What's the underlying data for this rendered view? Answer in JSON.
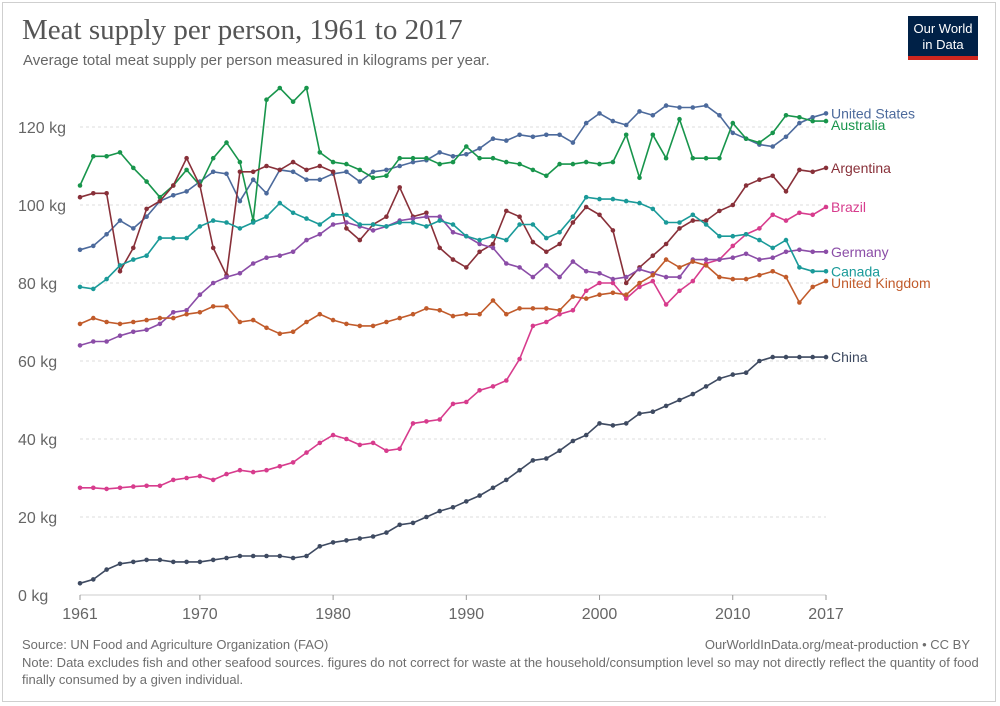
{
  "header": {
    "title": "Meat supply per person, 1961 to 2017",
    "subtitle": "Average total meat supply per person measured in kilograms per year."
  },
  "logo": {
    "line1": "Our World",
    "line2": "in Data",
    "bg": "#002147",
    "accent": "#ce261e"
  },
  "footer": {
    "source": "Source: UN Food and Agriculture Organization (FAO)",
    "credit": "OurWorldInData.org/meat-production • CC BY",
    "note": "Note: Data excludes fish and other seafood sources. figures do not correct for waste at the household/consumption level so may not directly reflect the quantity of food finally consumed by a given individual."
  },
  "chart_data": {
    "type": "line",
    "ylim": [
      0,
      130
    ],
    "xlim": [
      1961,
      2017
    ],
    "yticks": [
      0,
      20,
      40,
      60,
      80,
      100,
      120
    ],
    "ytick_labels": [
      "0 kg",
      "20 kg",
      "40 kg",
      "60 kg",
      "80 kg",
      "100 kg",
      "120 kg"
    ],
    "xticks": [
      1961,
      1970,
      1980,
      1990,
      2000,
      2010,
      2017
    ],
    "grid": "horizontal dashed",
    "legend": "inline labels at line ends",
    "series": [
      {
        "name": "United States",
        "color": "#4c6a9c",
        "x0": 1961,
        "label_y": 123.5,
        "values": [
          88.5,
          89.5,
          92.5,
          96,
          94,
          97,
          101,
          102.5,
          103.5,
          106,
          108.5,
          108,
          101,
          106.5,
          103,
          109,
          108.5,
          106.5,
          106.5,
          108,
          108.5,
          106,
          108.5,
          109,
          110,
          111,
          111.5,
          113.5,
          112.5,
          113,
          114.5,
          117,
          116.5,
          118,
          117.5,
          118,
          118,
          116,
          121,
          123.5,
          121.5,
          120.5,
          124,
          123,
          125.5,
          125,
          125,
          125.5,
          123,
          118.5,
          117,
          115.5,
          115,
          117.5,
          121,
          122.5,
          123.5
        ]
      },
      {
        "name": "Australia",
        "color": "#18954c",
        "x0": 1961,
        "label_y": 120.5,
        "values": [
          105,
          112.5,
          112.5,
          113.5,
          109.5,
          106,
          102,
          105,
          109,
          105,
          112,
          116,
          111,
          96,
          127,
          130,
          126.5,
          130,
          113.5,
          111,
          110.5,
          109,
          107,
          107.5,
          112,
          112,
          112,
          110.5,
          111,
          115,
          112,
          112,
          111,
          110.5,
          109,
          107.5,
          110.5,
          110.5,
          111,
          110.5,
          111,
          118,
          107,
          118,
          112,
          122,
          112,
          112,
          112,
          121,
          117,
          116,
          118.5,
          123,
          122.5,
          121.5,
          121.5
        ]
      },
      {
        "name": "Argentina",
        "color": "#883039",
        "x0": 1961,
        "label_y": 109.5,
        "values": [
          102,
          103,
          103,
          83,
          89,
          99,
          101,
          105,
          112,
          105,
          89,
          82,
          108.5,
          108.5,
          110,
          109,
          111,
          109,
          110,
          108.5,
          94,
          91,
          95,
          97,
          104.5,
          97,
          98,
          89,
          86,
          84,
          88,
          90,
          98.5,
          97,
          90.5,
          88,
          90,
          95.5,
          99.5,
          97.5,
          93.5,
          80,
          84,
          87,
          90,
          94,
          96,
          96,
          98.5,
          100,
          105,
          106.5,
          107.5,
          103.5,
          109,
          108.5,
          109.5
        ]
      },
      {
        "name": "Brazil",
        "color": "#d73c8d",
        "x0": 1961,
        "label_y": 99.5,
        "values": [
          27.5,
          27.5,
          27.2,
          27.5,
          27.8,
          28,
          28,
          29.5,
          30,
          30.5,
          29.5,
          31,
          32,
          31.5,
          32,
          33,
          34,
          36.5,
          39,
          41,
          40,
          38.5,
          39,
          37,
          37.5,
          44,
          44.5,
          45,
          49,
          49.5,
          52.5,
          53.5,
          55,
          60.5,
          69,
          70,
          72,
          73,
          78,
          80,
          80,
          76,
          79,
          80.5,
          74.5,
          78,
          80.5,
          85,
          86,
          89.5,
          92.5,
          94,
          97.5,
          96,
          98,
          97.5,
          99.5
        ]
      },
      {
        "name": "Germany",
        "color": "#8b4da7",
        "x0": 1961,
        "label_y": 88,
        "values": [
          64,
          65,
          65,
          66.5,
          67.5,
          68,
          69.5,
          72.5,
          73,
          77,
          80,
          81.5,
          82.5,
          85,
          86.5,
          87,
          88,
          91,
          92.5,
          95,
          95.5,
          94.5,
          93.5,
          94.5,
          96,
          96.5,
          97,
          97,
          93,
          92,
          90,
          89,
          85,
          84,
          81.5,
          84.5,
          81.5,
          85.5,
          83,
          82.5,
          81,
          81.5,
          83.5,
          82.5,
          81.5,
          81.5,
          86,
          86,
          86,
          86.5,
          87.5,
          86,
          86.5,
          88,
          88.5,
          88,
          88
        ]
      },
      {
        "name": "Canada",
        "color": "#1a9a99",
        "x0": 1961,
        "label_y": 83,
        "values": [
          79,
          78.5,
          81,
          84.5,
          86,
          87,
          91.5,
          91.5,
          91.5,
          94.5,
          96,
          95.5,
          94,
          95.5,
          97,
          100.5,
          98,
          96.5,
          95,
          97.5,
          97.5,
          95,
          95,
          94.5,
          95.5,
          95.5,
          94.5,
          96,
          95,
          92,
          91,
          92,
          91,
          95,
          95,
          91.5,
          93,
          97,
          102,
          101.5,
          101.5,
          101,
          100.5,
          99,
          95.5,
          95.5,
          97.5,
          95,
          92,
          92,
          92.5,
          91,
          89,
          91,
          84,
          83,
          83
        ]
      },
      {
        "name": "United Kingdom",
        "color": "#c15b2b",
        "x0": 1961,
        "label_y": 80,
        "values": [
          69.5,
          71,
          70,
          69.5,
          70,
          70.5,
          71,
          71,
          72,
          72.5,
          74,
          74,
          70,
          70.5,
          68.5,
          67,
          67.5,
          70,
          72,
          70.5,
          69.5,
          69,
          69,
          70,
          71,
          72,
          73.5,
          73,
          71.5,
          72,
          72,
          75.5,
          72,
          73.5,
          73.5,
          73.5,
          73,
          76.5,
          76,
          77,
          77.5,
          77,
          80,
          82,
          86,
          84,
          85.5,
          84.5,
          81.5,
          81,
          81,
          82,
          83,
          81.5,
          75,
          79,
          80.5
        ]
      },
      {
        "name": "China",
        "color": "#3e4a61",
        "x0": 1961,
        "label_y": 61,
        "values": [
          3,
          4,
          6.5,
          8,
          8.5,
          9,
          9,
          8.5,
          8.5,
          8.5,
          9,
          9.5,
          10,
          10,
          10,
          10,
          9.5,
          10,
          12.5,
          13.5,
          14,
          14.5,
          15,
          16,
          18,
          18.5,
          20,
          21.5,
          22.5,
          24,
          25.5,
          27.5,
          29.5,
          32,
          34.5,
          35,
          37,
          39.5,
          41,
          44,
          43.5,
          44,
          46.5,
          47,
          48.5,
          50,
          51.5,
          53.5,
          55.5,
          56.5,
          57,
          60,
          61,
          61,
          61,
          61,
          61
        ]
      }
    ]
  }
}
